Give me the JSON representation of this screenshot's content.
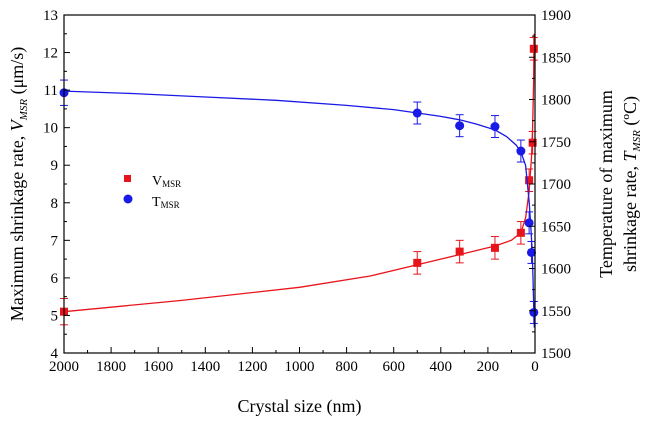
{
  "chart_data": {
    "type": "scatter",
    "title": "",
    "xlabel": "Crystal size (nm)",
    "x_reversed": true,
    "xlim": [
      2000,
      0
    ],
    "xticks": [
      2000,
      1800,
      1600,
      1400,
      1200,
      1000,
      800,
      600,
      400,
      200,
      0
    ],
    "ylabel_left": {
      "prefix": "Maximum shrinkage rate, ",
      "symbol": "V",
      "subscript": "MSR",
      "suffix": " (μm/s)"
    },
    "ylim_left": [
      4,
      13
    ],
    "yticks_left": [
      4,
      5,
      6,
      7,
      8,
      9,
      10,
      11,
      12,
      13
    ],
    "ylabel_right_line1": "Temperature of maximum",
    "ylabel_right_line2": {
      "prefix": "shrinkage rate, ",
      "symbol": "T",
      "subscript": "MSR",
      "suffix": " (ºC)"
    },
    "ylim_right": [
      1500,
      1900
    ],
    "yticks_right": [
      1500,
      1550,
      1600,
      1650,
      1700,
      1750,
      1800,
      1850,
      1900
    ],
    "legend_position": "left-middle",
    "grid": false,
    "series": [
      {
        "name": "V",
        "name_sub": "MSR",
        "axis": "left",
        "marker": "square",
        "color": "#e8141b",
        "points": [
          {
            "x": 2000,
            "y": 5.1,
            "err": 0.35
          },
          {
            "x": 500,
            "y": 6.4,
            "err": 0.3
          },
          {
            "x": 320,
            "y": 6.7,
            "err": 0.3
          },
          {
            "x": 170,
            "y": 6.8,
            "err": 0.3
          },
          {
            "x": 60,
            "y": 7.2,
            "err": 0.3
          },
          {
            "x": 25,
            "y": 8.6,
            "err": 0.3
          },
          {
            "x": 10,
            "y": 9.6,
            "err": 0.3
          },
          {
            "x": 5,
            "y": 12.1,
            "err": 0.3
          }
        ],
        "fit": [
          [
            2000,
            5.1
          ],
          [
            1500,
            5.4
          ],
          [
            1000,
            5.75
          ],
          [
            700,
            6.05
          ],
          [
            500,
            6.35
          ],
          [
            320,
            6.62
          ],
          [
            170,
            6.85
          ],
          [
            100,
            7.0
          ],
          [
            60,
            7.2
          ],
          [
            40,
            7.6
          ],
          [
            25,
            8.3
          ],
          [
            15,
            9.2
          ],
          [
            10,
            10.0
          ],
          [
            6,
            11.2
          ],
          [
            4,
            12.5
          ]
        ]
      },
      {
        "name": "T",
        "name_sub": "MSR",
        "axis": "right",
        "marker": "circle",
        "color": "#1a1ae6",
        "points": [
          {
            "x": 2000,
            "y": 1808,
            "err": 15
          },
          {
            "x": 500,
            "y": 1784,
            "err": 13
          },
          {
            "x": 320,
            "y": 1769,
            "err": 13
          },
          {
            "x": 170,
            "y": 1768,
            "err": 13
          },
          {
            "x": 60,
            "y": 1739,
            "err": 13
          },
          {
            "x": 25,
            "y": 1654,
            "err": 13
          },
          {
            "x": 15,
            "y": 1619,
            "err": 13
          },
          {
            "x": 5,
            "y": 1548,
            "err": 13
          }
        ],
        "fit": [
          [
            2000,
            1810
          ],
          [
            1700,
            1807
          ],
          [
            1400,
            1803
          ],
          [
            1100,
            1799
          ],
          [
            800,
            1793
          ],
          [
            600,
            1788
          ],
          [
            500,
            1784
          ],
          [
            400,
            1780
          ],
          [
            320,
            1776
          ],
          [
            250,
            1771
          ],
          [
            170,
            1764
          ],
          [
            120,
            1756
          ],
          [
            80,
            1746
          ],
          [
            60,
            1738
          ],
          [
            40,
            1722
          ],
          [
            25,
            1680
          ],
          [
            18,
            1650
          ],
          [
            12,
            1620
          ],
          [
            8,
            1585
          ],
          [
            5,
            1550
          ],
          [
            3,
            1530
          ]
        ]
      }
    ]
  }
}
